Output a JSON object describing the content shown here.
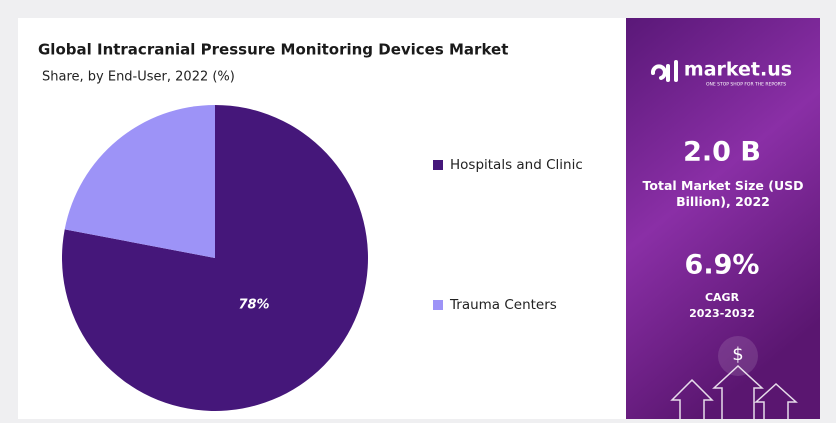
{
  "chart_data": {
    "type": "pie",
    "title": "Global Intracranial Pressure Monitoring Devices Market",
    "subtitle": "Share, by End-User, 2022 (%)",
    "categories": [
      "Hospitals and Clinic",
      "Trauma Centers"
    ],
    "values": [
      78,
      22
    ],
    "value_labels": [
      "78%",
      null
    ],
    "colors": [
      "#45177a",
      "#9d93f7"
    ]
  },
  "panel": {
    "brand": "market.us",
    "tagline": "ONE STOP SHOP FOR THE REPORTS",
    "market_size": "2.0 B",
    "market_size_label": "Total Market Size (USD Billion), 2022",
    "cagr": "6.9%",
    "cagr_label": "CAGR",
    "cagr_period": "2023-2032",
    "icon": "$"
  }
}
